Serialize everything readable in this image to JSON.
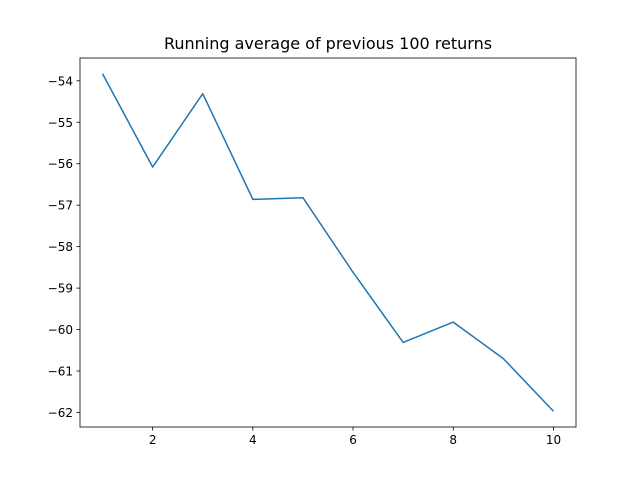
{
  "chart_data": {
    "type": "line",
    "title": "Running average of previous 100 returns",
    "xlabel": "",
    "ylabel": "",
    "x": [
      1,
      2,
      3,
      4,
      5,
      6,
      7,
      8,
      9,
      10
    ],
    "series": [
      {
        "values": [
          -53.83,
          -56.08,
          -54.31,
          -56.86,
          -56.82,
          -58.62,
          -60.31,
          -59.82,
          -60.7,
          -61.97
        ]
      }
    ],
    "xlim": [
      0.55,
      10.45
    ],
    "ylim": [
      -62.35,
      -53.45
    ],
    "xticks": [
      2,
      4,
      6,
      8,
      10
    ],
    "xtick_labels": [
      "2",
      "4",
      "6",
      "8",
      "10"
    ],
    "yticks": [
      -54,
      -55,
      -56,
      -57,
      -58,
      -59,
      -60,
      -61,
      -62
    ],
    "ytick_labels": [
      "−54",
      "−55",
      "−56",
      "−57",
      "−58",
      "−59",
      "−60",
      "−61",
      "−62"
    ],
    "grid": false,
    "legend": "none",
    "colors": {
      "line": "#1f77b4",
      "axes": "#000000",
      "background": "#ffffff"
    }
  }
}
